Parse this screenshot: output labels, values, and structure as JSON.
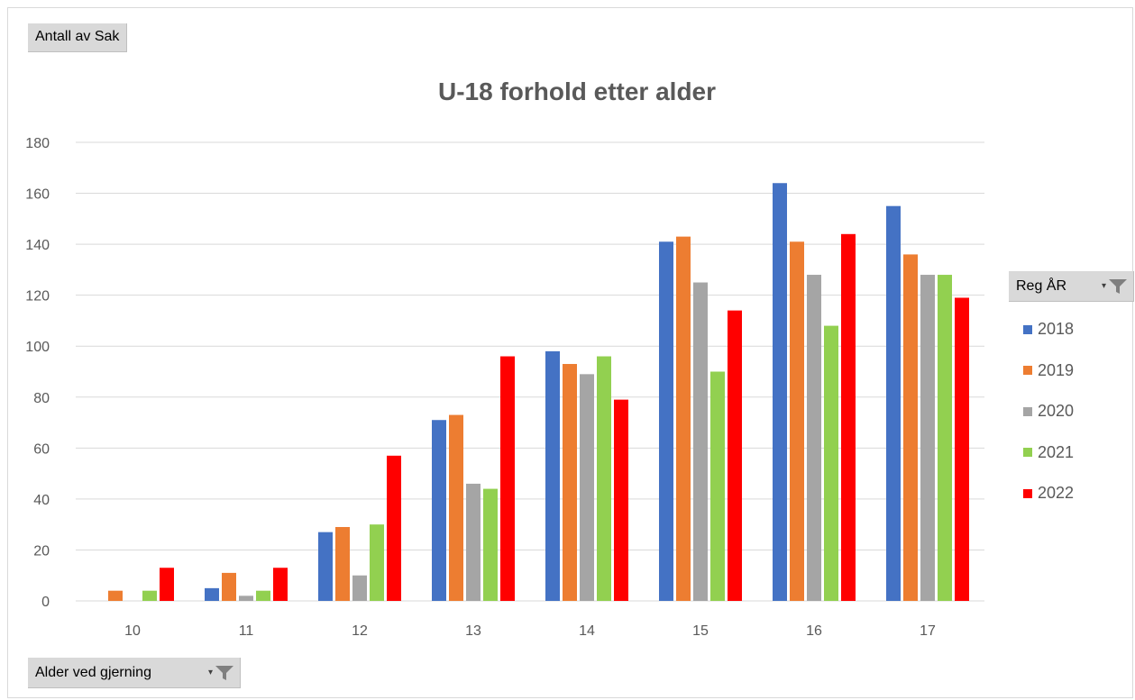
{
  "buttons": {
    "measure": "Antall av Sak",
    "axis_field": "Alder ved gjerning",
    "legend_field": "Reg ÅR"
  },
  "icons": {
    "filter": "funnel-filter-icon",
    "dropdown": "dropdown-arrow-icon"
  },
  "chart_data": {
    "type": "bar",
    "title": "U-18 forhold etter alder",
    "xlabel": "",
    "ylabel": "",
    "categories": [
      "10",
      "11",
      "12",
      "13",
      "14",
      "15",
      "16",
      "17"
    ],
    "ylim": [
      0,
      180
    ],
    "yticks": [
      0,
      20,
      40,
      60,
      80,
      100,
      120,
      140,
      160,
      180
    ],
    "grid": true,
    "legend_position": "right",
    "series": [
      {
        "name": "2018",
        "color": "#4472c4",
        "values": [
          0,
          5,
          27,
          71,
          98,
          141,
          164,
          155
        ]
      },
      {
        "name": "2019",
        "color": "#ed7d31",
        "values": [
          4,
          11,
          29,
          73,
          93,
          143,
          141,
          136
        ]
      },
      {
        "name": "2020",
        "color": "#a5a5a5",
        "values": [
          0,
          2,
          10,
          46,
          89,
          125,
          128,
          128
        ]
      },
      {
        "name": "2021",
        "color": "#92d050",
        "values": [
          4,
          4,
          30,
          44,
          96,
          90,
          108,
          128
        ]
      },
      {
        "name": "2022",
        "color": "#ff0000",
        "values": [
          13,
          13,
          57,
          96,
          79,
          114,
          144,
          119
        ]
      }
    ]
  }
}
